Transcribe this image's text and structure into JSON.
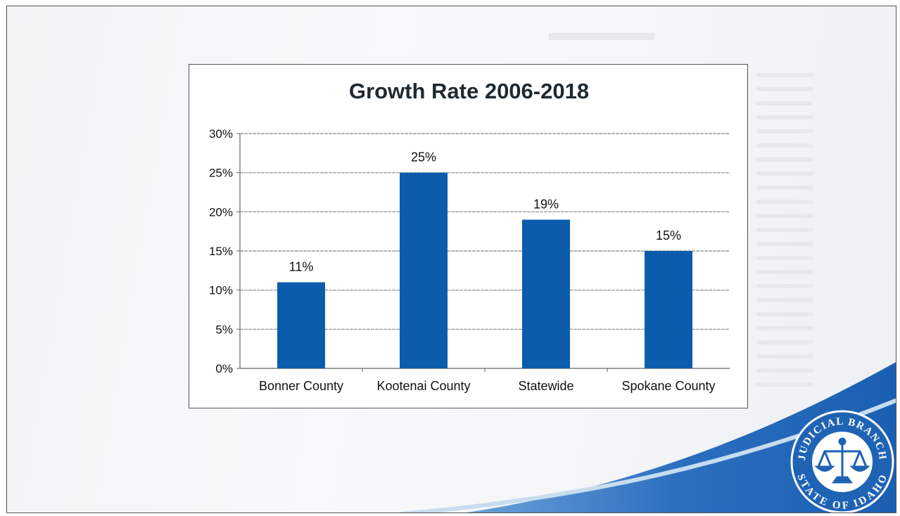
{
  "chart_data": {
    "type": "bar",
    "title": "Growth Rate 2006-2018",
    "categories": [
      "Bonner County",
      "Kootenai County",
      "Statewide",
      "Spokane County"
    ],
    "values": [
      11,
      25,
      19,
      15
    ],
    "data_labels": [
      "11%",
      "25%",
      "19%",
      "15%"
    ],
    "y_ticks": [
      "0%",
      "5%",
      "10%",
      "15%",
      "20%",
      "25%",
      "30%"
    ],
    "ylim": [
      0,
      30
    ],
    "xlabel": "",
    "ylabel": "",
    "grid": true,
    "legend": "none",
    "bar_color": "#0b5cad"
  },
  "seal": {
    "text_top": "JUDICIAL BRANCH",
    "text_bottom": "STATE OF IDAHO",
    "icon": "scales-of-justice-icon",
    "color": "#1f63b4"
  },
  "theme": {
    "accent": "#1a63b8"
  }
}
